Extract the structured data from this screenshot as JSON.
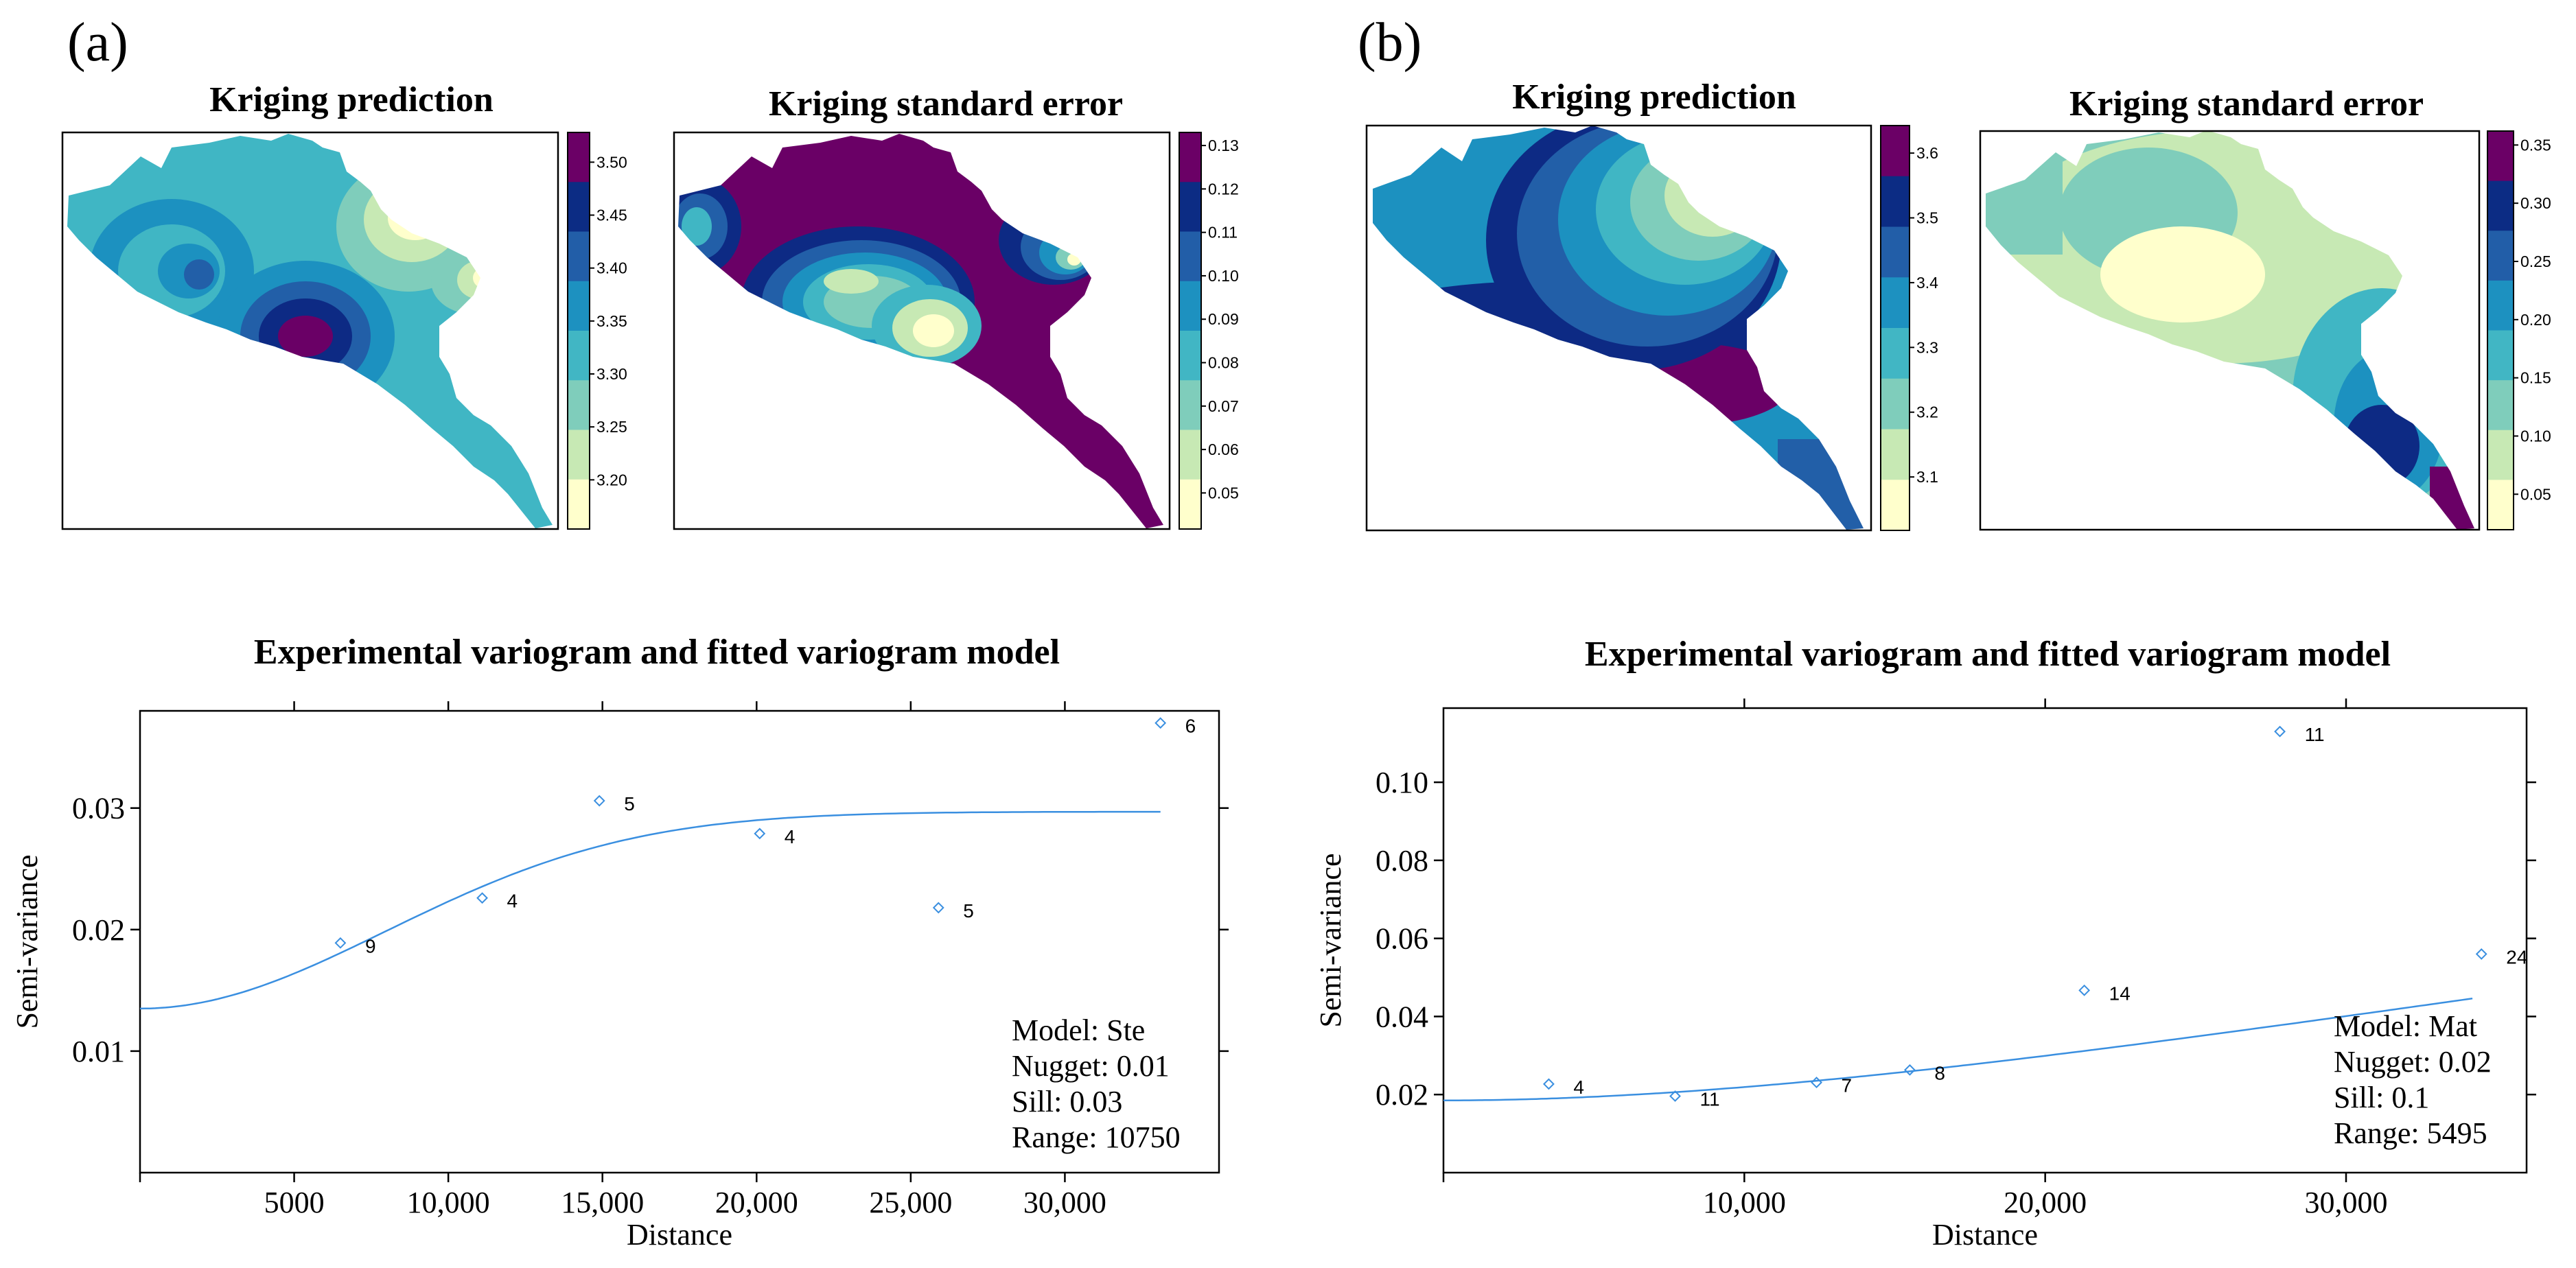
{
  "palette": [
    "#ffffcc",
    "#c7e9b4",
    "#7fcdbb",
    "#41b6c4",
    "#1d91c0",
    "#225ea8",
    "#0c2c84",
    "#6b0066"
  ],
  "fit_line_color": "#3a8fe0",
  "panels": [
    {
      "label": "(a)",
      "maps": [
        {
          "title": "Kriging prediction",
          "colorbar_ticks": [
            "3.50",
            "3.45",
            "3.40",
            "3.35",
            "3.30",
            "3.25",
            "3.20"
          ]
        },
        {
          "title": "Kriging standard error",
          "colorbar_ticks": [
            "0.13",
            "0.12",
            "0.11",
            "0.10",
            "0.09",
            "0.08",
            "0.07",
            "0.06",
            "0.05"
          ]
        }
      ],
      "legend": [
        "Model: Ste",
        "Nugget: 0.01",
        "Sill: 0.03",
        "Range: 10750"
      ]
    },
    {
      "label": "(b)",
      "maps": [
        {
          "title": "Kriging prediction",
          "colorbar_ticks": [
            "3.6",
            "3.5",
            "3.4",
            "3.3",
            "3.2",
            "3.1"
          ]
        },
        {
          "title": "Kriging standard error",
          "colorbar_ticks": [
            "0.35",
            "0.30",
            "0.25",
            "0.20",
            "0.15",
            "0.10",
            "0.05"
          ]
        }
      ],
      "legend": [
        "Model: Mat",
        "Nugget: 0.02",
        "Sill: 0.1",
        "Range: 5495"
      ]
    }
  ],
  "chart_data": [
    {
      "type": "scatter",
      "title": "Experimental variogram and fitted variogram model",
      "xlabel": "Distance",
      "ylabel": "Semi-variance",
      "xlim": [
        0,
        35000
      ],
      "ylim": [
        0,
        0.038
      ],
      "xticks": [
        5000,
        10000,
        15000,
        20000,
        25000,
        30000
      ],
      "xtick_labels": [
        "5000",
        "10,000",
        "15,000",
        "20,000",
        "25,000",
        "30,000"
      ],
      "yticks": [
        0.01,
        0.02,
        0.03
      ],
      "ytick_labels": [
        "0.01",
        "0.02",
        "0.03"
      ],
      "points": [
        {
          "x": 6500,
          "y": 0.0189,
          "n": "9"
        },
        {
          "x": 11100,
          "y": 0.0226,
          "n": "4"
        },
        {
          "x": 14900,
          "y": 0.0306,
          "n": "5"
        },
        {
          "x": 20100,
          "y": 0.0279,
          "n": "4"
        },
        {
          "x": 25900,
          "y": 0.0218,
          "n": "5"
        },
        {
          "x": 33100,
          "y": 0.037,
          "n": "6"
        }
      ],
      "fitted_model": {
        "name": "Ste",
        "nugget": 0.0135,
        "partial_sill": 0.0162,
        "range": 10750,
        "x_max": 33100
      }
    },
    {
      "type": "scatter",
      "title": "Experimental variogram and fitted variogram model",
      "xlabel": "Distance",
      "ylabel": "Semi-variance",
      "xlim": [
        0,
        36000
      ],
      "ylim": [
        0,
        0.119
      ],
      "xticks": [
        10000,
        20000,
        30000
      ],
      "xtick_labels": [
        "10,000",
        "20,000",
        "30,000"
      ],
      "yticks": [
        0.02,
        0.04,
        0.06,
        0.08,
        0.1
      ],
      "ytick_labels": [
        "0.02",
        "0.04",
        "0.06",
        "0.08",
        "0.10"
      ],
      "points": [
        {
          "x": 3500,
          "y": 0.0227,
          "n": "4"
        },
        {
          "x": 7700,
          "y": 0.0196,
          "n": "11"
        },
        {
          "x": 12400,
          "y": 0.0231,
          "n": "7"
        },
        {
          "x": 15500,
          "y": 0.0263,
          "n": "8"
        },
        {
          "x": 21300,
          "y": 0.0467,
          "n": "14"
        },
        {
          "x": 27800,
          "y": 0.113,
          "n": "11"
        },
        {
          "x": 34500,
          "y": 0.056,
          "n": "24"
        }
      ],
      "fitted_model": {
        "name": "Mat",
        "nugget": 0.0185,
        "partial_sill": 0.1,
        "range": 5495,
        "x_max": 34200
      }
    }
  ]
}
